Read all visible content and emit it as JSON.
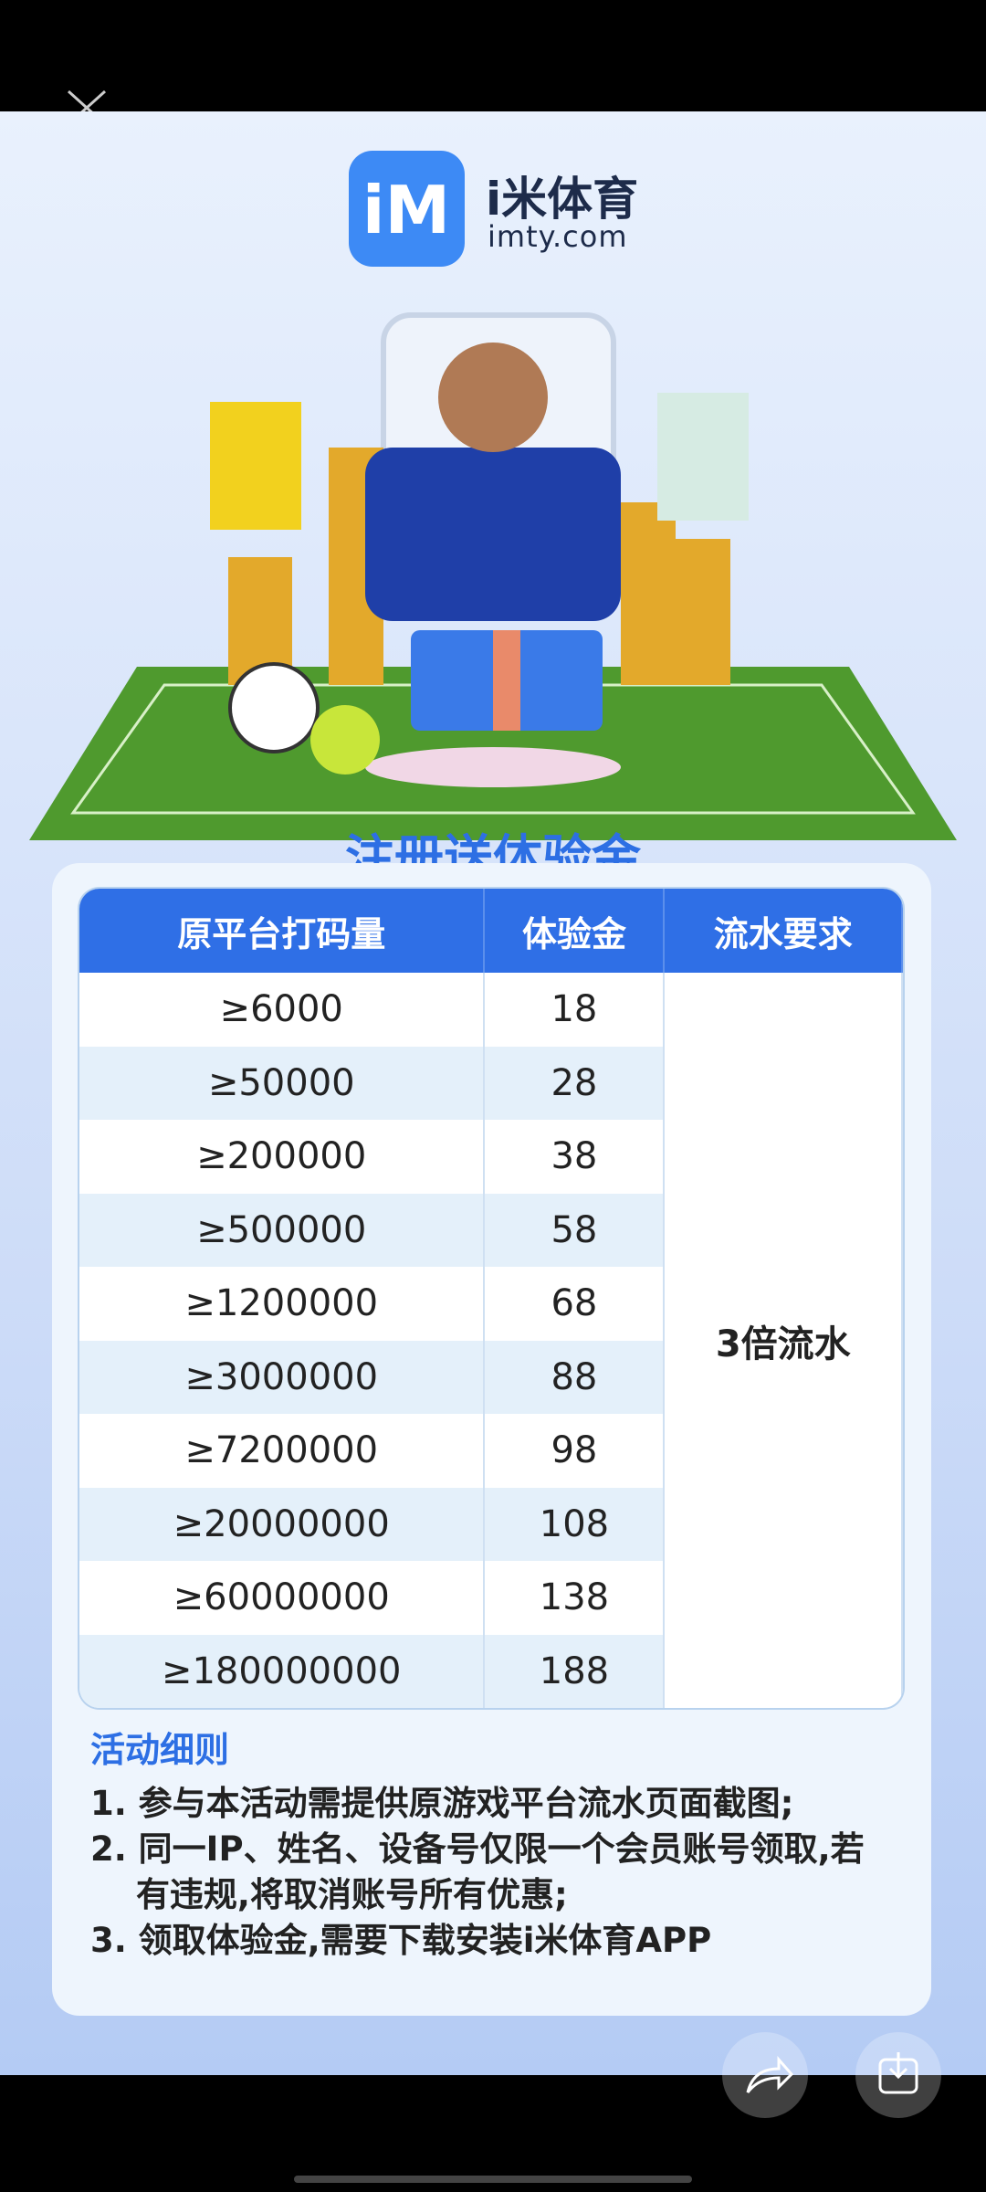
{
  "header": {
    "logo_name": "i米体育",
    "logo_domain": "imty.com"
  },
  "title": "注册送体验金",
  "table": {
    "columns": [
      "原平台打码量",
      "体验金",
      "流水要求"
    ],
    "rows": [
      [
        "≥6000",
        "18"
      ],
      [
        "≥50000",
        "28"
      ],
      [
        "≥200000",
        "38"
      ],
      [
        "≥500000",
        "58"
      ],
      [
        "≥1200000",
        "68"
      ],
      [
        "≥3000000",
        "88"
      ],
      [
        "≥7200000",
        "98"
      ],
      [
        "≥20000000",
        "108"
      ],
      [
        "≥60000000",
        "138"
      ],
      [
        "≥180000000",
        "188"
      ]
    ],
    "requirement": "3倍流水"
  },
  "rules": {
    "title": "活动细则",
    "items": [
      "1. 参与本活动需提供原游戏平台流水页面截图;",
      "2. 同一IP、姓名、设备号仅限一个会员账号领取,若有违规,将取消账号所有优惠;",
      "3. 领取体验金,需要下载安装i米体育APP"
    ]
  }
}
